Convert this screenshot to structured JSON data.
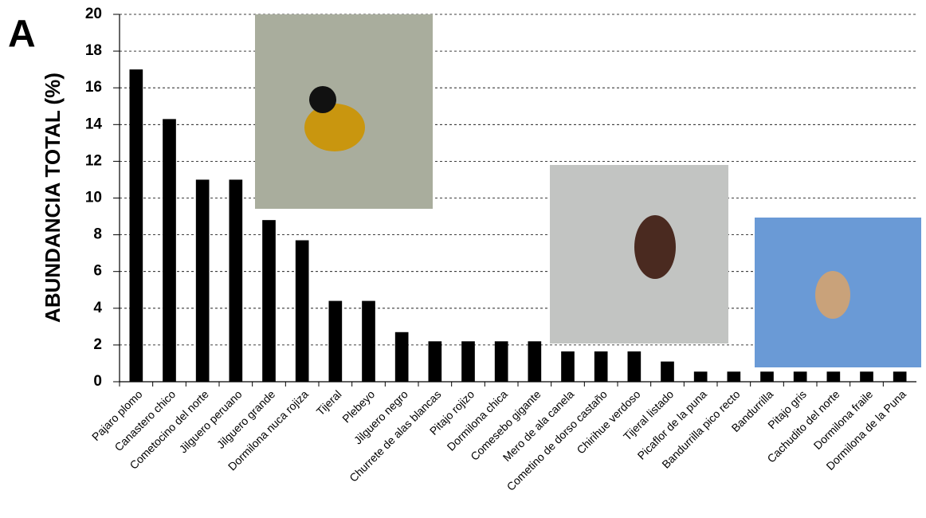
{
  "chart_data": {
    "type": "bar",
    "panel_label": "A",
    "y_label": "ABUNDANCIA TOTAL (%)",
    "categories": [
      "Pajaro plomo",
      "Canastero chico",
      "Cometocino del norte",
      "Jilguero peruano",
      "Jilguero grande",
      "Dormilona nuca rojiza",
      "Tijeral",
      "Plebeyo",
      "Jilguero negro",
      "Churrete de alas blancas",
      "Pitajo rojizo",
      "Dormilona chica",
      "Comesebo gigante",
      "Mero de ala canela",
      "Cometino de dorso castaño",
      "Chirihue verdoso",
      "Tijeral listado",
      "Picaflor de la puna",
      "Bandurrilla pico recto",
      "Bandurrilla",
      "Pitajo gris",
      "Cachudito del norte",
      "Dormilona fraile",
      "Dormilona de la Puna"
    ],
    "values": [
      17.0,
      14.3,
      11.0,
      11.0,
      8.8,
      7.7,
      4.4,
      4.4,
      2.7,
      2.2,
      2.2,
      2.2,
      2.2,
      1.65,
      1.65,
      1.65,
      1.1,
      0.55,
      0.55,
      0.55,
      0.55,
      0.55,
      0.55,
      0.55
    ],
    "color": "#000000",
    "ylim": [
      0,
      20
    ],
    "yticks": [
      0,
      2,
      4,
      6,
      8,
      10,
      12,
      14,
      16,
      18,
      20
    ],
    "grid": true
  }
}
